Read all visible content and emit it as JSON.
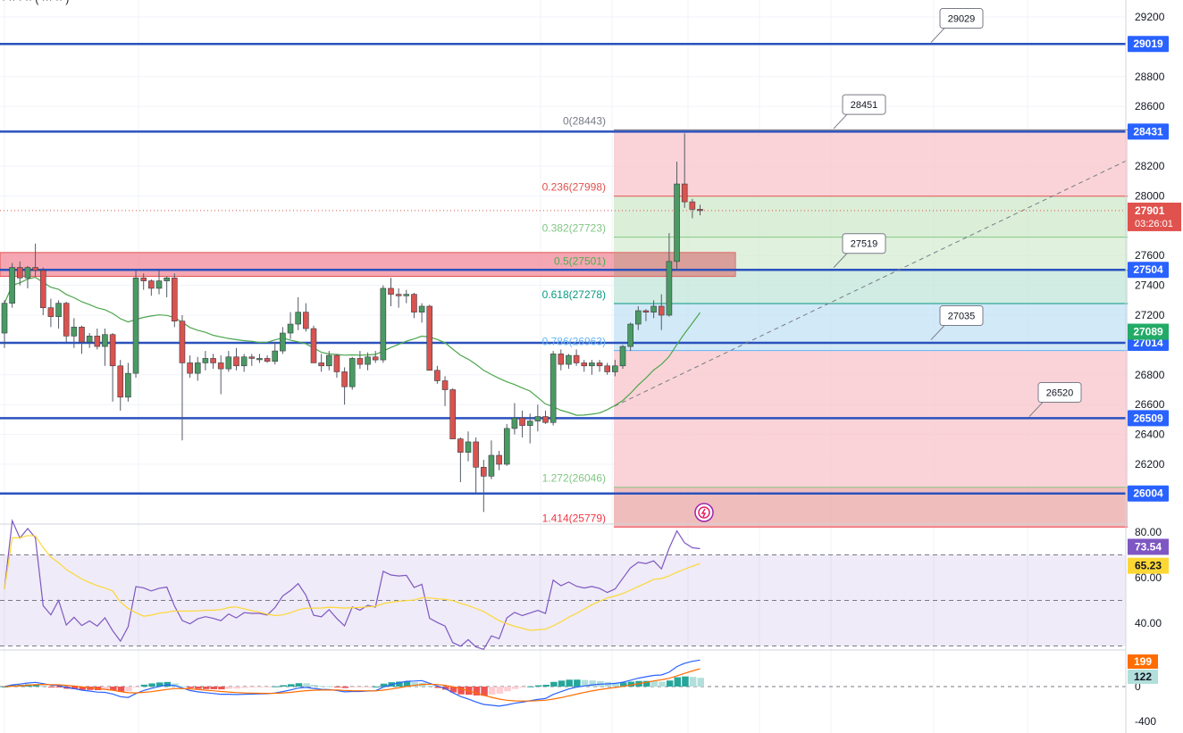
{
  "chart_data": {
    "type": "candlestick",
    "header_text": "· ·· · ·· ( ··· ·· )",
    "price_axis": {
      "ticks": [
        29200,
        28800,
        28600,
        28200,
        28000,
        27600,
        27400,
        27200,
        26800,
        26600,
        26400,
        26200
      ],
      "ylim": [
        25600,
        29300
      ]
    },
    "current_price": {
      "value": 27901,
      "label": "27901",
      "countdown": "03:26:01",
      "color": "#e0524e"
    },
    "ma_tag": {
      "value": 27089,
      "label": "27089",
      "color": "#22ab66"
    },
    "levels": [
      {
        "value": 29019,
        "label": "29019"
      },
      {
        "value": 28431,
        "label": "28431"
      },
      {
        "value": 27504,
        "label": "27504"
      },
      {
        "value": 27014,
        "label": "27014"
      },
      {
        "value": 26509,
        "label": "26509"
      },
      {
        "value": 26004,
        "label": "26004"
      }
    ],
    "callouts": [
      {
        "label": "29029",
        "value": 29029
      },
      {
        "label": "28451",
        "value": 28451
      },
      {
        "label": "27519",
        "value": 27519
      },
      {
        "label": "27035",
        "value": 27035
      },
      {
        "label": "26520",
        "value": 26520
      }
    ],
    "resistance_zone": {
      "low": 27460,
      "high": 27620
    },
    "fibonacci": [
      {
        "ratio": "0",
        "price": 28443,
        "label": "0(28443)",
        "color": "#787b86"
      },
      {
        "ratio": "0.236",
        "price": 27998,
        "label": "0.236(27998)",
        "color": "#e0524e"
      },
      {
        "ratio": "0.382",
        "price": 27723,
        "label": "0.382(27723)",
        "color": "#81c784"
      },
      {
        "ratio": "0.5",
        "price": 27501,
        "label": "0.5(27501)",
        "color": "#4caf50"
      },
      {
        "ratio": "0.618",
        "price": 27278,
        "label": "0.618(27278)",
        "color": "#089981"
      },
      {
        "ratio": "0.786",
        "price": 26963,
        "label": "0.786(26963)",
        "color": "#64b5f6"
      },
      {
        "ratio": "1.272",
        "price": 26046,
        "label": "1.272(26046)",
        "color": "#81c784"
      },
      {
        "ratio": "1.414",
        "price": 25779,
        "label": "1.414(25779)",
        "color": "#f23645"
      }
    ],
    "candles": [
      [
        27080,
        27300,
        26980,
        27280
      ],
      [
        27280,
        27550,
        27250,
        27520
      ],
      [
        27520,
        27560,
        27400,
        27450
      ],
      [
        27450,
        27530,
        27380,
        27520
      ],
      [
        27520,
        27680,
        27460,
        27500
      ],
      [
        27500,
        27520,
        27200,
        27250
      ],
      [
        27250,
        27310,
        27120,
        27190
      ],
      [
        27190,
        27300,
        27110,
        27280
      ],
      [
        27280,
        27290,
        27020,
        27060
      ],
      [
        27060,
        27180,
        26980,
        27120
      ],
      [
        27120,
        27130,
        26940,
        27020
      ],
      [
        27020,
        27080,
        26980,
        27060
      ],
      [
        27060,
        27110,
        26970,
        26990
      ],
      [
        26990,
        27110,
        26860,
        27070
      ],
      [
        27070,
        27080,
        26620,
        26860
      ],
      [
        26860,
        26900,
        26560,
        26650
      ],
      [
        26650,
        26880,
        26620,
        26810
      ],
      [
        26810,
        27500,
        26780,
        27450
      ],
      [
        27450,
        27480,
        27370,
        27430
      ],
      [
        27430,
        27440,
        27330,
        27380
      ],
      [
        27380,
        27500,
        27340,
        27430
      ],
      [
        27430,
        27460,
        27320,
        27450
      ],
      [
        27450,
        27480,
        27120,
        27160
      ],
      [
        27160,
        27200,
        26360,
        26880
      ],
      [
        26880,
        26930,
        26780,
        26810
      ],
      [
        26810,
        26920,
        26760,
        26880
      ],
      [
        26880,
        26960,
        26830,
        26910
      ],
      [
        26910,
        26940,
        26840,
        26880
      ],
      [
        26880,
        26930,
        26670,
        26840
      ],
      [
        26840,
        26960,
        26820,
        26920
      ],
      [
        26920,
        26980,
        26830,
        26860
      ],
      [
        26860,
        26940,
        26820,
        26920
      ],
      [
        26920,
        26940,
        26860,
        26910
      ],
      [
        26910,
        26940,
        26880,
        26910
      ],
      [
        26910,
        26930,
        26880,
        26890
      ],
      [
        26890,
        27020,
        26870,
        26960
      ],
      [
        26960,
        27120,
        26940,
        27080
      ],
      [
        27080,
        27220,
        27040,
        27140
      ],
      [
        27140,
        27320,
        27100,
        27220
      ],
      [
        27220,
        27280,
        27090,
        27110
      ],
      [
        27110,
        27130,
        26900,
        26880
      ],
      [
        26880,
        26940,
        26820,
        26860
      ],
      [
        26860,
        26960,
        26830,
        26930
      ],
      [
        26930,
        26940,
        26780,
        26820
      ],
      [
        26820,
        26850,
        26600,
        26720
      ],
      [
        26720,
        26920,
        26700,
        26910
      ],
      [
        26910,
        26960,
        26840,
        26870
      ],
      [
        26870,
        26950,
        26830,
        26920
      ],
      [
        26920,
        26960,
        26880,
        26900
      ],
      [
        26900,
        27400,
        26880,
        27380
      ],
      [
        27380,
        27450,
        27260,
        27340
      ],
      [
        27340,
        27380,
        27250,
        27330
      ],
      [
        27330,
        27370,
        27280,
        27340
      ],
      [
        27340,
        27350,
        27180,
        27220
      ],
      [
        27220,
        27280,
        27150,
        27260
      ],
      [
        27260,
        27270,
        26840,
        26830
      ],
      [
        26830,
        26860,
        26740,
        26760
      ],
      [
        26760,
        26790,
        26590,
        26700
      ],
      [
        26700,
        26710,
        26380,
        26370
      ],
      [
        26370,
        26380,
        26080,
        26280
      ],
      [
        26280,
        26420,
        26220,
        26350
      ],
      [
        26350,
        26380,
        26000,
        26180
      ],
      [
        26180,
        26230,
        25880,
        26120
      ],
      [
        26120,
        26360,
        26100,
        26260
      ],
      [
        26260,
        26290,
        26160,
        26200
      ],
      [
        26200,
        26470,
        26190,
        26440
      ],
      [
        26440,
        26610,
        26400,
        26510
      ],
      [
        26510,
        26560,
        26380,
        26460
      ],
      [
        26460,
        26540,
        26340,
        26490
      ],
      [
        26490,
        26600,
        26420,
        26520
      ],
      [
        26520,
        26560,
        26470,
        26480
      ],
      [
        26480,
        26960,
        26460,
        26940
      ],
      [
        26940,
        26970,
        26830,
        26870
      ],
      [
        26870,
        26940,
        26840,
        26930
      ],
      [
        26930,
        26970,
        26860,
        26880
      ],
      [
        26880,
        26900,
        26820,
        26860
      ],
      [
        26860,
        26900,
        26800,
        26880
      ],
      [
        26880,
        26900,
        26820,
        26860
      ],
      [
        26860,
        26880,
        26800,
        26820
      ],
      [
        26820,
        26900,
        26790,
        26860
      ],
      [
        26860,
        27000,
        26840,
        26990
      ],
      [
        26990,
        27150,
        26960,
        27140
      ],
      [
        27140,
        27260,
        27100,
        27230
      ],
      [
        27230,
        27240,
        27160,
        27220
      ],
      [
        27220,
        27300,
        27180,
        27260
      ],
      [
        27260,
        27340,
        27100,
        27200
      ],
      [
        27200,
        27750,
        27190,
        27560
      ],
      [
        27560,
        28230,
        27500,
        28080
      ],
      [
        28080,
        28420,
        27920,
        27960
      ],
      [
        27960,
        27980,
        27850,
        27910
      ],
      [
        27910,
        27940,
        27870,
        27901
      ]
    ],
    "rsi": {
      "axis_ticks": [
        "80.00",
        "60.00",
        "40.00"
      ],
      "value_tag": "73.54",
      "ma_tag": "65.23",
      "upper_band": 70,
      "mid_line": 50,
      "lower_band": 30
    },
    "macd": {
      "axis_ticks": [
        "0",
        "-400"
      ],
      "macd_tag": "199",
      "signal_tag": "122"
    }
  }
}
